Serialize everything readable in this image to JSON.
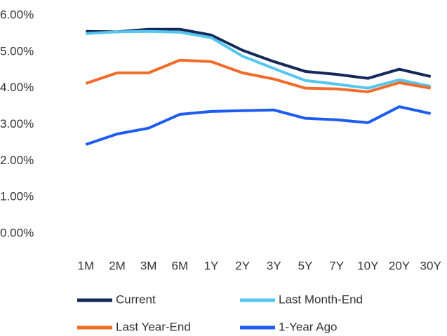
{
  "chart_data": {
    "type": "line",
    "categories": [
      "1M",
      "2M",
      "3M",
      "6M",
      "1Y",
      "2Y",
      "3Y",
      "5Y",
      "7Y",
      "10Y",
      "20Y",
      "30Y"
    ],
    "series": [
      {
        "name": "Current",
        "color": "#14285a",
        "values": [
          5.56,
          5.55,
          5.62,
          5.62,
          5.46,
          5.04,
          4.73,
          4.46,
          4.38,
          4.27,
          4.52,
          4.32
        ]
      },
      {
        "name": "Last Month-End",
        "color": "#55c6ef",
        "values": [
          5.5,
          5.55,
          5.56,
          5.54,
          5.39,
          4.88,
          4.54,
          4.21,
          4.11,
          4.0,
          4.23,
          4.05
        ]
      },
      {
        "name": "Last Year-End",
        "color": "#f26b2a",
        "values": [
          4.13,
          4.42,
          4.42,
          4.77,
          4.73,
          4.42,
          4.25,
          4.0,
          3.98,
          3.9,
          4.15,
          4.0
        ]
      },
      {
        "name": "1-Year Ago",
        "color": "#1e5cf0",
        "values": [
          2.45,
          2.74,
          2.9,
          3.28,
          3.36,
          3.38,
          3.4,
          3.17,
          3.13,
          3.05,
          3.49,
          3.3
        ]
      }
    ],
    "ylim": [
      0,
      6
    ],
    "yticks": [
      {
        "value": 0,
        "label": "0.00%"
      },
      {
        "value": 1,
        "label": "1.00%"
      },
      {
        "value": 2,
        "label": "2.00%"
      },
      {
        "value": 3,
        "label": "3.00%"
      },
      {
        "value": 4,
        "label": "4.00%"
      },
      {
        "value": 5,
        "label": "5.00%"
      },
      {
        "value": 6,
        "label": "6.00%"
      }
    ],
    "grid": false,
    "legend": "bottom"
  }
}
